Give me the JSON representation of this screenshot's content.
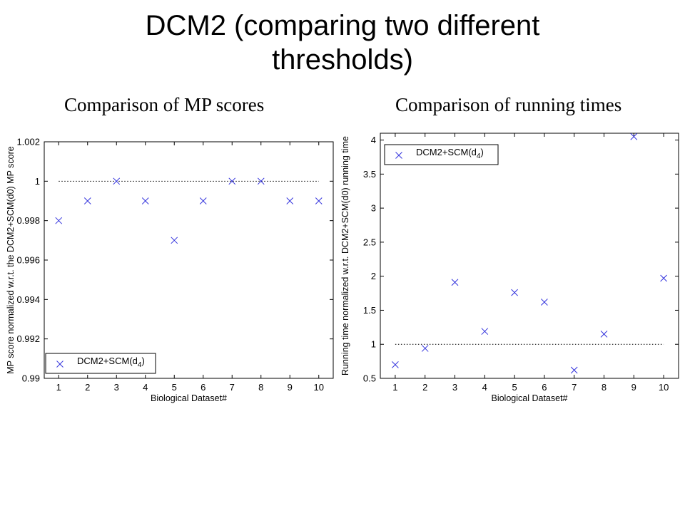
{
  "slide": {
    "title_line1": "DCM2 (comparing two different",
    "title_line2": "thresholds)"
  },
  "panels": {
    "left_title": "Comparison of MP scores",
    "right_title": "Comparison of running times"
  },
  "colors": {
    "marker": "#3333dd",
    "reference_line": "#000000"
  },
  "chart_data": [
    {
      "type": "scatter",
      "title": "",
      "xlabel": "Biological Dataset#",
      "ylabel": "MP score normalized w.r.t. the DCM2+SCM(d0) MP score",
      "xlim": [
        0.5,
        10.5
      ],
      "ylim": [
        0.99,
        1.002
      ],
      "xticks": [
        1,
        2,
        3,
        4,
        5,
        6,
        7,
        8,
        9,
        10
      ],
      "yticks": [
        0.99,
        0.992,
        0.994,
        0.996,
        0.998,
        1,
        1.002
      ],
      "ytick_labels": [
        "0.99",
        "0.992",
        "0.994",
        "0.996",
        "0.998",
        "1",
        "1.002"
      ],
      "grid": false,
      "reference_line": 1,
      "legend": {
        "label": "DCM2+SCM(d",
        "subscript": "4",
        "suffix": ")",
        "position": "bottom-left"
      },
      "series": [
        {
          "name": "DCM2+SCM(d4)",
          "marker": "x",
          "x": [
            1,
            2,
            3,
            4,
            5,
            6,
            7,
            8,
            9,
            10
          ],
          "y": [
            0.998,
            0.999,
            1.0,
            0.999,
            0.997,
            0.999,
            1.0,
            1.0,
            0.999,
            0.999
          ]
        }
      ]
    },
    {
      "type": "scatter",
      "title": "",
      "xlabel": "Biological Dataset#",
      "ylabel": "Running time normalized w.r.t. DCM2+SCM(d0) running time",
      "xlim": [
        0.5,
        10.5
      ],
      "ylim": [
        0.5,
        4.1
      ],
      "xticks": [
        1,
        2,
        3,
        4,
        5,
        6,
        7,
        8,
        9,
        10
      ],
      "yticks": [
        0.5,
        1,
        1.5,
        2,
        2.5,
        3,
        3.5,
        4
      ],
      "ytick_labels": [
        "0.5",
        "1",
        "1.5",
        "2",
        "2.5",
        "3",
        "3.5",
        "4"
      ],
      "grid": false,
      "reference_line": 1,
      "legend": {
        "label": "DCM2+SCM(d",
        "subscript": "4",
        "suffix": ")",
        "position": "top-left"
      },
      "series": [
        {
          "name": "DCM2+SCM(d4)",
          "marker": "x",
          "x": [
            1,
            2,
            3,
            4,
            5,
            6,
            7,
            8,
            9,
            10
          ],
          "y": [
            0.7,
            0.94,
            1.91,
            1.19,
            1.76,
            1.62,
            0.62,
            1.15,
            4.05,
            1.97
          ]
        }
      ]
    }
  ]
}
